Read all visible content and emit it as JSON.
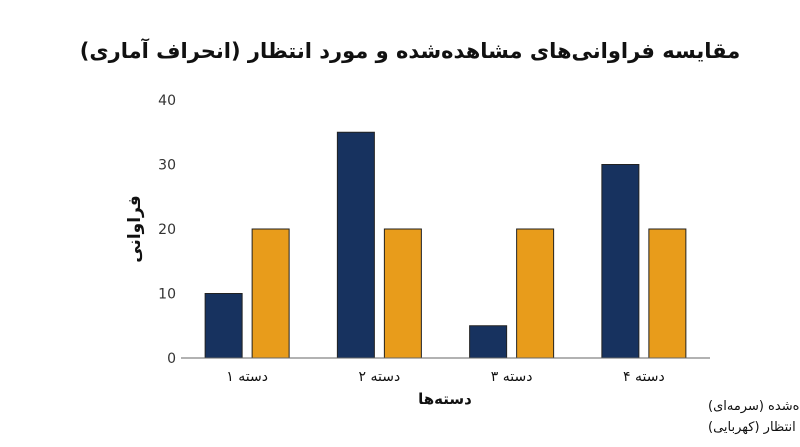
{
  "chart_data": {
    "type": "bar",
    "title": "مقایسه فراوانی‌های مشاهده‌شده و مورد انتظار (انحراف آماری)",
    "xlabel": "دسته‌ها",
    "ylabel": "فراوانی",
    "categories": [
      "دسته ۱",
      "دسته ۲",
      "دسته ۳",
      "دسته ۴"
    ],
    "series": [
      {
        "values": [
          10,
          35,
          5,
          30
        ],
        "color": "#17325f"
      },
      {
        "values": [
          20,
          20,
          20,
          20
        ],
        "color": "#e89c1b"
      }
    ],
    "ylim": [
      0,
      40
    ],
    "yticks": [
      0,
      10,
      20,
      30,
      40
    ],
    "grid": false,
    "notes": [
      "مشاهده‌شده (سرمه‌ای)",
      "مورد انتظار (کهربایی)"
    ]
  }
}
